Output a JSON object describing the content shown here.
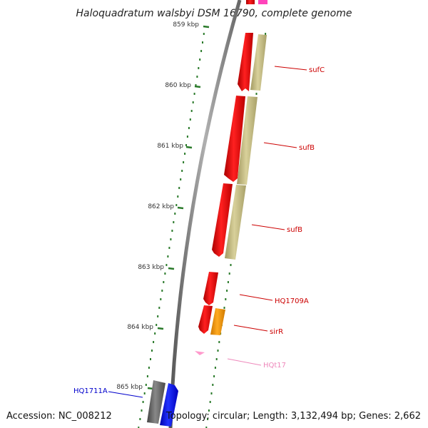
{
  "title": "Haloquadratum walsbyi DSM 16790, complete genome",
  "footer": {
    "accession": "Accession: NC_008212",
    "topology": "Topology: circular; Length: 3,132,494 bp; Genes: 2,662"
  },
  "scale_labels": [
    "859 kbp",
    "860 kbp",
    "861 kbp",
    "862 kbp",
    "863 kbp",
    "864 kbp",
    "865 kbp"
  ],
  "gene_labels": [
    {
      "text": "sufC",
      "color": "#cc0000"
    },
    {
      "text": "sufB",
      "color": "#cc0000"
    },
    {
      "text": "sufB",
      "color": "#cc0000"
    },
    {
      "text": "HQ1709A",
      "color": "#cc0000"
    },
    {
      "text": "sirR",
      "color": "#cc0000"
    },
    {
      "text": "HQt17",
      "color": "#ee88bb"
    },
    {
      "text": "HQ1711A",
      "color": "#0000cc"
    }
  ],
  "colors": {
    "backbone": "#8a8a8a",
    "tick": "#2a7a2a",
    "gene_red": "#ee0000",
    "gene_khaki": "#c8bf86",
    "gene_orange": "#ff9900",
    "gene_pink": "#ff99cc",
    "gene_blue": "#0000ee",
    "gene_gray": "#666666",
    "gene_magenta": "#ff44bb"
  }
}
